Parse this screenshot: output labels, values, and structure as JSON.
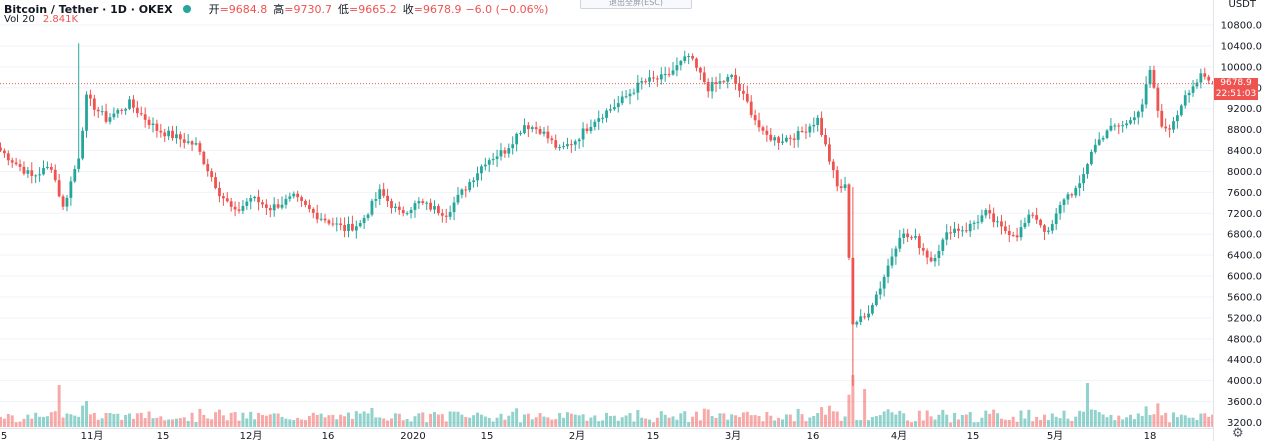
{
  "header": {
    "symbol": "Bitcoin / Tether · 1D · OKEX",
    "open_label": "开",
    "open_value": "=9684.8",
    "high_label": "高",
    "high_value": "=9730.7",
    "low_label": "低",
    "low_value": "=9665.2",
    "close_label": "收",
    "close_value": "=9678.9",
    "change_value": "−6.0 (−0.06%)"
  },
  "volume_legend": {
    "label": "Vol 20",
    "value": "2.841K"
  },
  "esc_hint": "退出全屏(ESC)",
  "price_axis": {
    "currency": "USDT",
    "ticks": [
      "10800.0",
      "10400.0",
      "10000.0",
      "9600.0",
      "9200.0",
      "8800.0",
      "8400.0",
      "8000.0",
      "7600.0",
      "7200.0",
      "6800.0",
      "6400.0",
      "6000.0",
      "5600.0",
      "5200.0",
      "4800.0",
      "4400.0",
      "4000.0",
      "3600.0",
      "3200.0"
    ],
    "current_price": "9678.9",
    "countdown": "22:51:03"
  },
  "colors": {
    "up": "#26a69a",
    "down": "#ef5350",
    "grid": "#f0f3fa"
  },
  "chart_data": {
    "type": "candlestick",
    "symbol": "Bitcoin / Tether",
    "interval": "1D",
    "exchange": "OKEX",
    "currency": "USDT",
    "ylim": [
      3100,
      11100
    ],
    "last": {
      "open": 9684.8,
      "high": 9730.7,
      "low": 9665.2,
      "close": 9678.9
    },
    "x_tick_labels": [
      "5",
      "11月",
      "15",
      "12月",
      "16",
      "2020",
      "15",
      "2月",
      "15",
      "3月",
      "16",
      "4月",
      "15",
      "5月",
      "18"
    ],
    "keypoints": [
      [
        0,
        8400
      ],
      [
        8,
        7900
      ],
      [
        13,
        8100
      ],
      [
        16,
        7300
      ],
      [
        20,
        8300
      ],
      [
        22,
        9400
      ],
      [
        27,
        9000
      ],
      [
        33,
        9300
      ],
      [
        40,
        8800
      ],
      [
        50,
        8500
      ],
      [
        56,
        7600
      ],
      [
        60,
        7200
      ],
      [
        64,
        7500
      ],
      [
        69,
        7300
      ],
      [
        75,
        7500
      ],
      [
        80,
        7200
      ],
      [
        88,
        6900
      ],
      [
        92,
        7000
      ],
      [
        97,
        7600
      ],
      [
        102,
        7200
      ],
      [
        107,
        7400
      ],
      [
        114,
        7200
      ],
      [
        119,
        7700
      ],
      [
        124,
        8200
      ],
      [
        129,
        8400
      ],
      [
        134,
        8900
      ],
      [
        138,
        8800
      ],
      [
        143,
        8400
      ],
      [
        147,
        8600
      ],
      [
        152,
        9000
      ],
      [
        158,
        9300
      ],
      [
        164,
        9700
      ],
      [
        170,
        9800
      ],
      [
        176,
        10200
      ],
      [
        181,
        9600
      ],
      [
        187,
        9800
      ],
      [
        191,
        9300
      ],
      [
        195,
        8700
      ],
      [
        199,
        8600
      ],
      [
        204,
        8700
      ],
      [
        209,
        9000
      ],
      [
        214,
        7700
      ],
      [
        216,
        7700
      ],
      [
        218,
        5100
      ],
      [
        221,
        5200
      ],
      [
        225,
        5800
      ],
      [
        230,
        6800
      ],
      [
        234,
        6700
      ],
      [
        238,
        6300
      ],
      [
        243,
        6900
      ],
      [
        247,
        6900
      ],
      [
        252,
        7200
      ],
      [
        256,
        6900
      ],
      [
        260,
        6800
      ],
      [
        264,
        7200
      ],
      [
        268,
        6800
      ],
      [
        272,
        7500
      ],
      [
        276,
        7700
      ],
      [
        279,
        8400
      ],
      [
        283,
        8800
      ],
      [
        288,
        8900
      ],
      [
        292,
        9300
      ],
      [
        294,
        9900
      ],
      [
        297,
        8800
      ],
      [
        300,
        8900
      ],
      [
        303,
        9500
      ],
      [
        307,
        9800
      ],
      [
        310,
        9680
      ]
    ]
  }
}
